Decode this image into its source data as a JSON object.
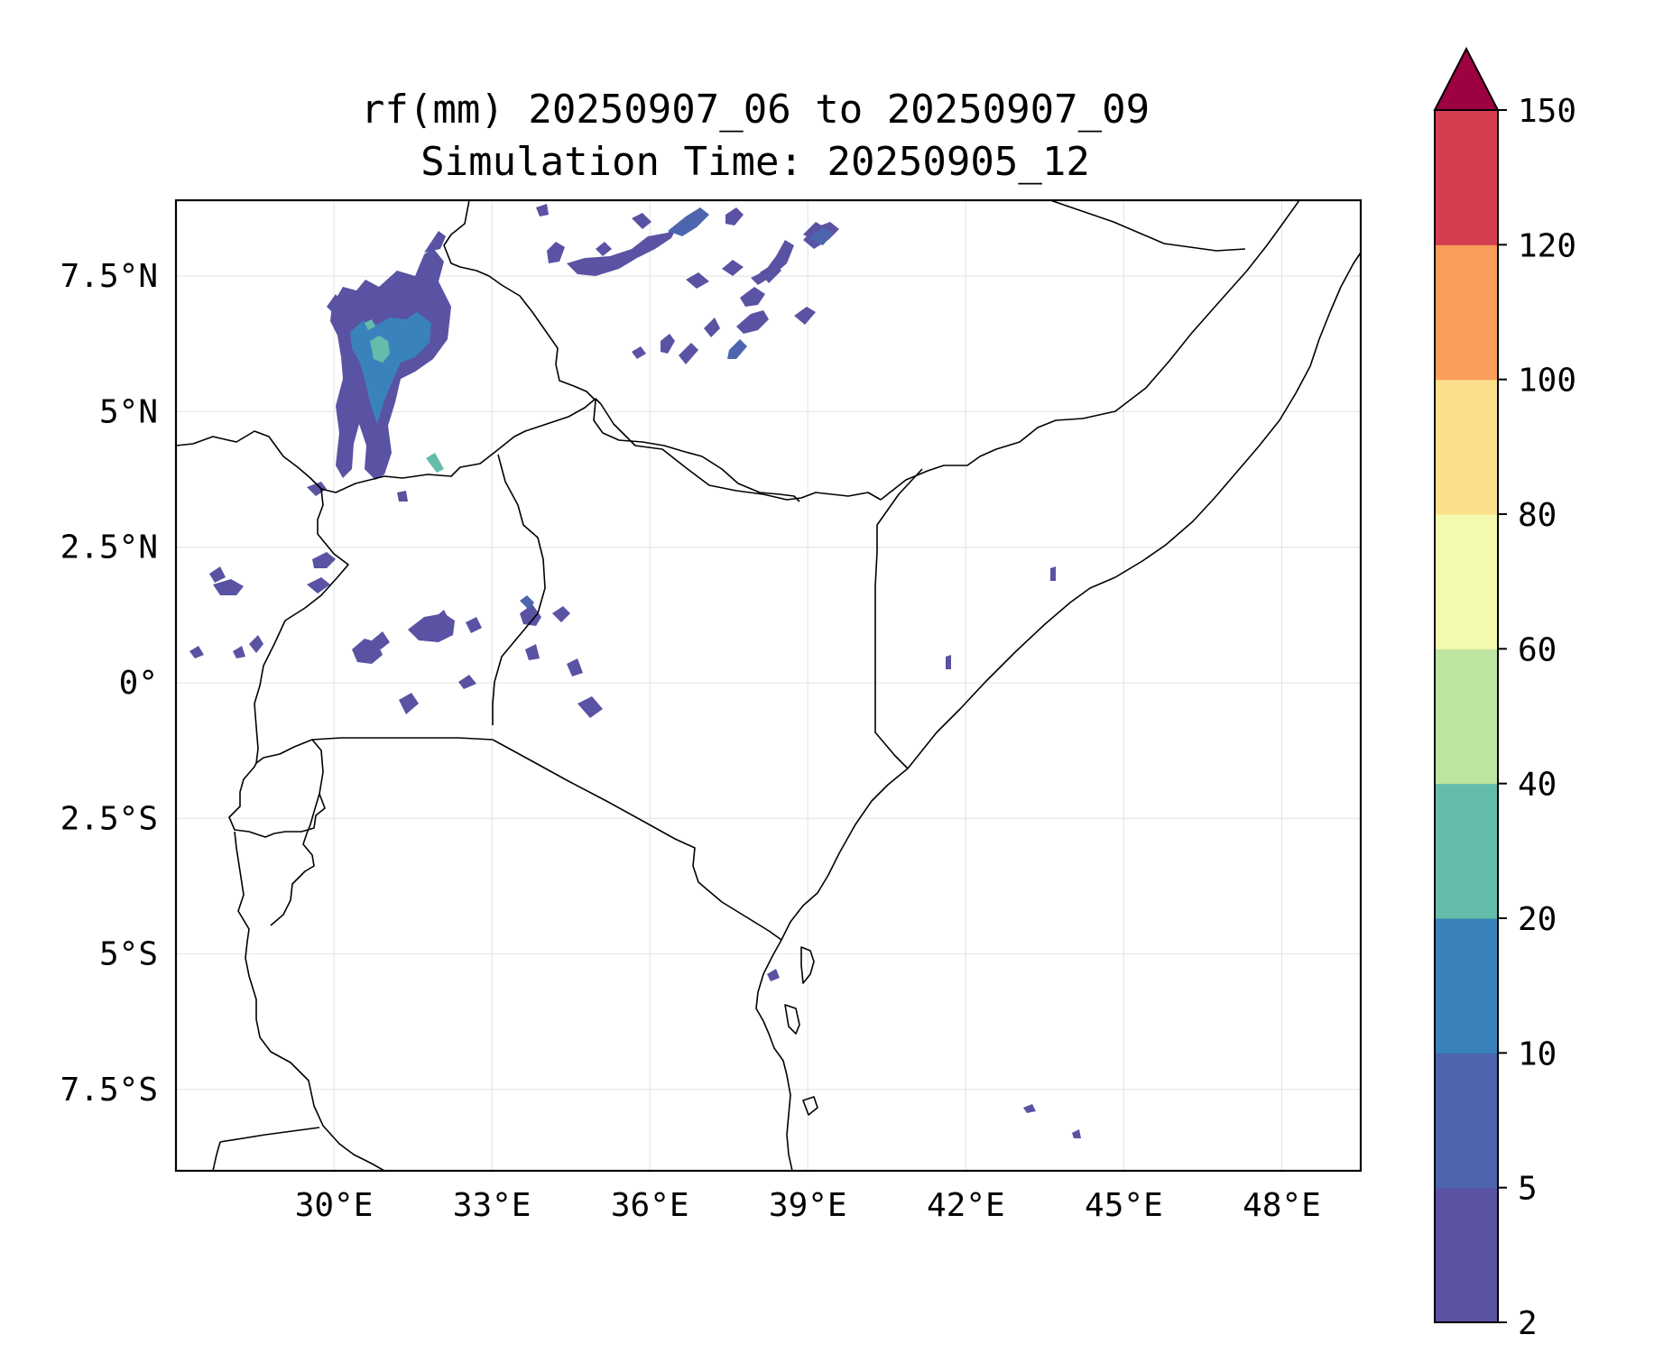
{
  "title": {
    "line1": "rf(mm) 20250907_06 to 20250907_09",
    "line2": "Simulation Time: 20250905_12"
  },
  "map": {
    "lon_range": [
      27.0,
      49.5
    ],
    "lat_range": [
      -9.0,
      8.9
    ],
    "lon_ticks": [
      {
        "value": 30,
        "label": "30°E"
      },
      {
        "value": 33,
        "label": "33°E"
      },
      {
        "value": 36,
        "label": "36°E"
      },
      {
        "value": 39,
        "label": "39°E"
      },
      {
        "value": 42,
        "label": "42°E"
      },
      {
        "value": 45,
        "label": "45°E"
      },
      {
        "value": 48,
        "label": "48°E"
      }
    ],
    "lat_ticks": [
      {
        "value": 7.5,
        "label": "7.5°N"
      },
      {
        "value": 5,
        "label": "5°N"
      },
      {
        "value": 2.5,
        "label": "2.5°N"
      },
      {
        "value": 0,
        "label": "0°"
      },
      {
        "value": -2.5,
        "label": "2.5°S"
      },
      {
        "value": -5,
        "label": "5°S"
      },
      {
        "value": -7.5,
        "label": "7.5°S"
      }
    ],
    "gridlines": true
  },
  "colorbar": {
    "levels": [
      2,
      5,
      10,
      20,
      40,
      60,
      80,
      100,
      120,
      150
    ],
    "labels": [
      "2",
      "5",
      "10",
      "20",
      "40",
      "60",
      "80",
      "100",
      "120",
      "150"
    ],
    "colors": [
      "#5a52a3",
      "#4c65ae",
      "#3a82bc",
      "#63bdaa",
      "#bde4a0",
      "#f3f9ad",
      "#fbdf8c",
      "#f99d5a",
      "#d53e4f"
    ],
    "extend_color": "#9e0142",
    "extend": "max"
  },
  "colors": {
    "rain_light": "#5a52a3",
    "rain_mid": "#3a82bc",
    "rain_high": "#63bdaa",
    "border": "#000000"
  }
}
